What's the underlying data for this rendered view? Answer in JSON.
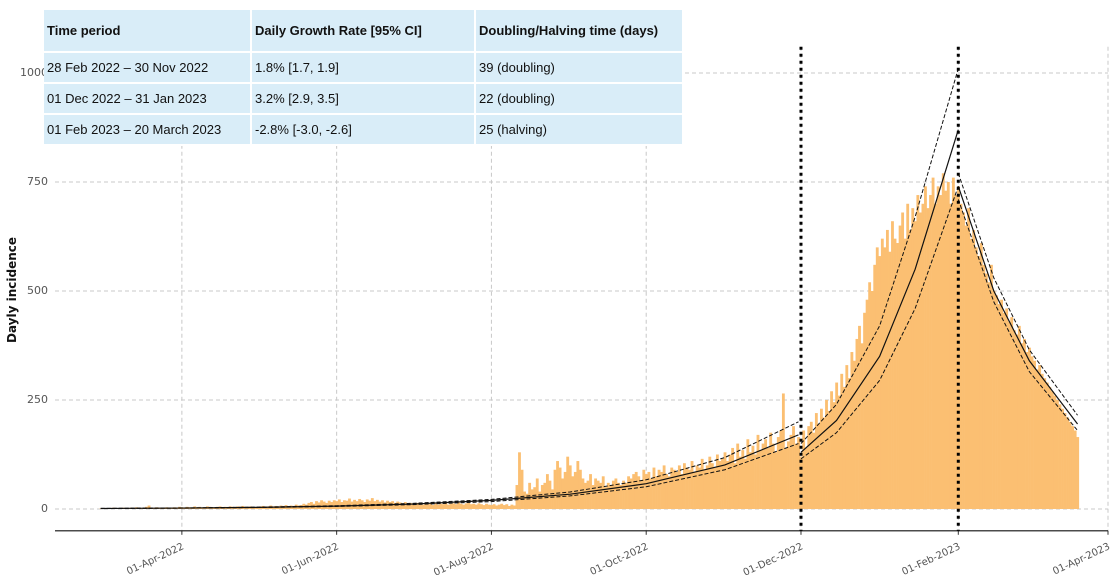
{
  "chart_data": {
    "type": "bar",
    "ylabel": "Dayly incidence",
    "color": "#fbbf72",
    "xlim": [
      "2022-02-10",
      "2023-04-01"
    ],
    "ylim": [
      -50,
      1060
    ],
    "yticks": [
      0,
      250,
      500,
      750,
      1000
    ],
    "xticks": [
      {
        "value": "2022-04-01",
        "label": "01-Apr-2022"
      },
      {
        "value": "2022-06-01",
        "label": "01-Jun-2022"
      },
      {
        "value": "2022-08-01",
        "label": "01-Aug-2022"
      },
      {
        "value": "2022-10-01",
        "label": "01-Oct-2022"
      },
      {
        "value": "2022-12-01",
        "label": "01-Dec-2022"
      },
      {
        "value": "2023-02-01",
        "label": "01-Feb-2023"
      },
      {
        "value": "2023-04-01",
        "label": "01-Apr-2023"
      }
    ],
    "grid": true,
    "vlines": [
      "2022-12-01",
      "2023-02-01"
    ],
    "x": [
      "2022-02-28",
      "2022-03-01",
      "2022-03-02",
      "2022-03-03",
      "2022-03-04",
      "2022-03-05",
      "2022-03-06",
      "2022-03-07",
      "2022-03-08",
      "2022-03-09",
      "2022-03-10",
      "2022-03-11",
      "2022-03-12",
      "2022-03-13",
      "2022-03-14",
      "2022-03-15",
      "2022-03-16",
      "2022-03-17",
      "2022-03-18",
      "2022-03-19",
      "2022-03-20",
      "2022-03-21",
      "2022-03-22",
      "2022-03-23",
      "2022-03-24",
      "2022-03-25",
      "2022-03-26",
      "2022-03-27",
      "2022-03-28",
      "2022-03-29",
      "2022-03-30",
      "2022-03-31",
      "2022-04-01",
      "2022-04-02",
      "2022-04-03",
      "2022-04-04",
      "2022-04-05",
      "2022-04-06",
      "2022-04-07",
      "2022-04-08",
      "2022-04-09",
      "2022-04-10",
      "2022-04-11",
      "2022-04-12",
      "2022-04-13",
      "2022-04-14",
      "2022-04-15",
      "2022-04-16",
      "2022-04-17",
      "2022-04-18",
      "2022-04-19",
      "2022-04-20",
      "2022-04-21",
      "2022-04-22",
      "2022-04-23",
      "2022-04-24",
      "2022-04-25",
      "2022-04-26",
      "2022-04-27",
      "2022-04-28",
      "2022-04-29",
      "2022-04-30",
      "2022-05-01",
      "2022-05-02",
      "2022-05-03",
      "2022-05-04",
      "2022-05-05",
      "2022-05-06",
      "2022-05-07",
      "2022-05-08",
      "2022-05-09",
      "2022-05-10",
      "2022-05-11",
      "2022-05-12",
      "2022-05-13",
      "2022-05-14",
      "2022-05-15",
      "2022-05-16",
      "2022-05-17",
      "2022-05-18",
      "2022-05-19",
      "2022-05-20",
      "2022-05-21",
      "2022-05-22",
      "2022-05-23",
      "2022-05-24",
      "2022-05-25",
      "2022-05-26",
      "2022-05-27",
      "2022-05-28",
      "2022-05-29",
      "2022-05-30",
      "2022-05-31",
      "2022-06-01",
      "2022-06-02",
      "2022-06-03",
      "2022-06-04",
      "2022-06-05",
      "2022-06-06",
      "2022-06-07",
      "2022-06-08",
      "2022-06-09",
      "2022-06-10",
      "2022-06-11",
      "2022-06-12",
      "2022-06-13",
      "2022-06-14",
      "2022-06-15",
      "2022-06-16",
      "2022-06-17",
      "2022-06-18",
      "2022-06-19",
      "2022-06-20",
      "2022-06-21",
      "2022-06-22",
      "2022-06-23",
      "2022-06-24",
      "2022-06-25",
      "2022-06-26",
      "2022-06-27",
      "2022-06-28",
      "2022-06-29",
      "2022-06-30",
      "2022-07-01",
      "2022-07-02",
      "2022-07-03",
      "2022-07-04",
      "2022-07-05",
      "2022-07-06",
      "2022-07-07",
      "2022-07-08",
      "2022-07-09",
      "2022-07-10",
      "2022-07-11",
      "2022-07-12",
      "2022-07-13",
      "2022-07-14",
      "2022-07-15",
      "2022-07-16",
      "2022-07-17",
      "2022-07-18",
      "2022-07-19",
      "2022-07-20",
      "2022-07-21",
      "2022-07-22",
      "2022-07-23",
      "2022-07-24",
      "2022-07-25",
      "2022-07-26",
      "2022-07-27",
      "2022-07-28",
      "2022-07-29",
      "2022-07-30",
      "2022-07-31",
      "2022-08-01",
      "2022-08-02",
      "2022-08-03",
      "2022-08-04",
      "2022-08-05",
      "2022-08-06",
      "2022-08-07",
      "2022-08-08",
      "2022-08-09",
      "2022-08-10",
      "2022-08-11",
      "2022-08-12",
      "2022-08-13",
      "2022-08-14",
      "2022-08-15",
      "2022-08-16",
      "2022-08-17",
      "2022-08-18",
      "2022-08-19",
      "2022-08-20",
      "2022-08-21",
      "2022-08-22",
      "2022-08-23",
      "2022-08-24",
      "2022-08-25",
      "2022-08-26",
      "2022-08-27",
      "2022-08-28",
      "2022-08-29",
      "2022-08-30",
      "2022-08-31",
      "2022-09-01",
      "2022-09-02",
      "2022-09-03",
      "2022-09-04",
      "2022-09-05",
      "2022-09-06",
      "2022-09-07",
      "2022-09-08",
      "2022-09-09",
      "2022-09-10",
      "2022-09-11",
      "2022-09-12",
      "2022-09-13",
      "2022-09-14",
      "2022-09-15",
      "2022-09-16",
      "2022-09-17",
      "2022-09-18",
      "2022-09-19",
      "2022-09-20",
      "2022-09-21",
      "2022-09-22",
      "2022-09-23",
      "2022-09-24",
      "2022-09-25",
      "2022-09-26",
      "2022-09-27",
      "2022-09-28",
      "2022-09-29",
      "2022-09-30",
      "2022-10-01",
      "2022-10-02",
      "2022-10-03",
      "2022-10-04",
      "2022-10-05",
      "2022-10-06",
      "2022-10-07",
      "2022-10-08",
      "2022-10-09",
      "2022-10-10",
      "2022-10-11",
      "2022-10-12",
      "2022-10-13",
      "2022-10-14",
      "2022-10-15",
      "2022-10-16",
      "2022-10-17",
      "2022-10-18",
      "2022-10-19",
      "2022-10-20",
      "2022-10-21",
      "2022-10-22",
      "2022-10-23",
      "2022-10-24",
      "2022-10-25",
      "2022-10-26",
      "2022-10-27",
      "2022-10-28",
      "2022-10-29",
      "2022-10-30",
      "2022-10-31",
      "2022-11-01",
      "2022-11-02",
      "2022-11-03",
      "2022-11-04",
      "2022-11-05",
      "2022-11-06",
      "2022-11-07",
      "2022-11-08",
      "2022-11-09",
      "2022-11-10",
      "2022-11-11",
      "2022-11-12",
      "2022-11-13",
      "2022-11-14",
      "2022-11-15",
      "2022-11-16",
      "2022-11-17",
      "2022-11-18",
      "2022-11-19",
      "2022-11-20",
      "2022-11-21",
      "2022-11-22",
      "2022-11-23",
      "2022-11-24",
      "2022-11-25",
      "2022-11-26",
      "2022-11-27",
      "2022-11-28",
      "2022-11-29",
      "2022-11-30",
      "2022-12-01",
      "2022-12-02",
      "2022-12-03",
      "2022-12-04",
      "2022-12-05",
      "2022-12-06",
      "2022-12-07",
      "2022-12-08",
      "2022-12-09",
      "2022-12-10",
      "2022-12-11",
      "2022-12-12",
      "2022-12-13",
      "2022-12-14",
      "2022-12-15",
      "2022-12-16",
      "2022-12-17",
      "2022-12-18",
      "2022-12-19",
      "2022-12-20",
      "2022-12-21",
      "2022-12-22",
      "2022-12-23",
      "2022-12-24",
      "2022-12-25",
      "2022-12-26",
      "2022-12-27",
      "2022-12-28",
      "2022-12-29",
      "2022-12-30",
      "2022-12-31",
      "2023-01-01",
      "2023-01-02",
      "2023-01-03",
      "2023-01-04",
      "2023-01-05",
      "2023-01-06",
      "2023-01-07",
      "2023-01-08",
      "2023-01-09",
      "2023-01-10",
      "2023-01-11",
      "2023-01-12",
      "2023-01-13",
      "2023-01-14",
      "2023-01-15",
      "2023-01-16",
      "2023-01-17",
      "2023-01-18",
      "2023-01-19",
      "2023-01-20",
      "2023-01-21",
      "2023-01-22",
      "2023-01-23",
      "2023-01-24",
      "2023-01-25",
      "2023-01-26",
      "2023-01-27",
      "2023-01-28",
      "2023-01-29",
      "2023-01-30",
      "2023-01-31",
      "2023-02-01",
      "2023-02-02",
      "2023-02-03",
      "2023-02-04",
      "2023-02-05",
      "2023-02-06",
      "2023-02-07",
      "2023-02-08",
      "2023-02-09",
      "2023-02-10",
      "2023-02-11",
      "2023-02-12",
      "2023-02-13",
      "2023-02-14",
      "2023-02-15",
      "2023-02-16",
      "2023-02-17",
      "2023-02-18",
      "2023-02-19",
      "2023-02-20",
      "2023-02-21",
      "2023-02-22",
      "2023-02-23",
      "2023-02-24",
      "2023-02-25",
      "2023-02-26",
      "2023-02-27",
      "2023-02-28",
      "2023-03-01",
      "2023-03-02",
      "2023-03-03",
      "2023-03-04",
      "2023-03-05",
      "2023-03-06",
      "2023-03-07",
      "2023-03-08",
      "2023-03-09",
      "2023-03-10",
      "2023-03-11",
      "2023-03-12",
      "2023-03-13",
      "2023-03-14",
      "2023-03-15",
      "2023-03-16",
      "2023-03-17",
      "2023-03-18",
      "2023-03-19",
      "2023-03-20"
    ],
    "values": [
      1,
      1,
      2,
      1,
      2,
      3,
      2,
      1,
      2,
      3,
      2,
      1,
      3,
      2,
      4,
      3,
      2,
      3,
      5,
      8,
      3,
      2,
      4,
      3,
      2,
      3,
      4,
      2,
      3,
      4,
      3,
      5,
      4,
      3,
      5,
      4,
      3,
      6,
      4,
      5,
      3,
      4,
      6,
      5,
      4,
      3,
      5,
      6,
      4,
      5,
      3,
      6,
      5,
      4,
      6,
      5,
      7,
      4,
      5,
      6,
      5,
      4,
      5,
      6,
      7,
      5,
      6,
      8,
      6,
      7,
      5,
      8,
      7,
      9,
      6,
      8,
      7,
      10,
      8,
      9,
      12,
      10,
      14,
      16,
      12,
      18,
      15,
      20,
      17,
      14,
      19,
      16,
      20,
      18,
      22,
      16,
      20,
      19,
      24,
      17,
      21,
      18,
      23,
      20,
      16,
      22,
      19,
      25,
      18,
      21,
      17,
      20,
      15,
      19,
      16,
      18,
      14,
      17,
      15,
      13,
      16,
      12,
      14,
      13,
      11,
      14,
      12,
      10,
      13,
      11,
      12,
      9,
      13,
      10,
      12,
      11,
      14,
      10,
      12,
      13,
      11,
      15,
      12,
      10,
      13,
      14,
      11,
      12,
      10,
      13,
      11,
      9,
      12,
      10,
      9,
      11,
      8,
      10,
      12,
      9,
      11,
      7,
      10,
      8,
      55,
      130,
      90,
      40,
      35,
      60,
      45,
      50,
      70,
      40,
      55,
      60,
      80,
      65,
      45,
      90,
      110,
      95,
      70,
      85,
      120,
      100,
      75,
      85,
      110,
      90,
      70,
      60,
      65,
      80,
      55,
      70,
      65,
      60,
      75,
      50,
      60,
      55,
      65,
      70,
      60,
      55,
      65,
      60,
      75,
      70,
      80,
      85,
      75,
      65,
      90,
      80,
      85,
      70,
      95,
      75,
      90,
      85,
      100,
      80,
      75,
      95,
      90,
      85,
      100,
      80,
      105,
      95,
      90,
      110,
      85,
      100,
      95,
      115,
      90,
      100,
      120,
      105,
      95,
      125,
      110,
      115,
      130,
      110,
      125,
      140,
      105,
      150,
      120,
      135,
      115,
      160,
      130,
      145,
      125,
      170,
      135,
      150,
      160,
      140,
      175,
      150,
      130,
      165,
      180,
      265,
      140,
      155,
      170,
      190,
      150,
      165,
      120,
      180,
      140,
      190,
      200,
      175,
      220,
      195,
      230,
      210,
      250,
      225,
      270,
      245,
      290,
      260,
      310,
      280,
      330,
      300,
      360,
      340,
      390,
      420,
      380,
      450,
      480,
      520,
      500,
      560,
      600,
      580,
      620,
      600,
      640,
      590,
      660,
      620,
      610,
      650,
      680,
      620,
      700,
      640,
      690,
      660,
      720,
      680,
      700,
      740,
      690,
      720,
      760,
      700,
      740,
      720,
      770,
      730,
      750,
      700,
      760,
      720,
      740,
      700,
      680,
      650,
      690,
      620,
      640,
      600,
      580,
      610,
      560,
      540,
      520,
      560,
      500,
      490,
      470,
      480,
      450,
      460,
      430,
      440,
      410,
      400,
      420,
      380,
      390,
      360,
      370,
      350,
      340,
      320,
      330,
      310,
      300,
      290,
      280,
      270,
      260,
      250,
      240,
      230,
      220,
      210,
      200,
      190,
      180,
      165
    ],
    "lines": [
      {
        "dashed": false,
        "x": [
          "2022-02-28",
          "2022-04-01",
          "2022-05-01",
          "2022-06-01",
          "2022-07-01",
          "2022-08-01",
          "2022-09-01",
          "2022-10-01",
          "2022-11-01",
          "2022-11-30"
        ],
        "values": [
          1.2,
          2.2,
          3.8,
          6.6,
          11.3,
          19.7,
          34,
          58,
          101,
          170
        ]
      },
      {
        "dashed": true,
        "x": [
          "2022-02-28",
          "2022-04-01",
          "2022-05-01",
          "2022-06-01",
          "2022-07-01",
          "2022-08-01",
          "2022-09-01",
          "2022-10-01",
          "2022-11-01",
          "2022-11-30"
        ],
        "values": [
          1.4,
          2.5,
          4.3,
          7.5,
          13,
          22,
          39,
          67,
          118,
          200
        ]
      },
      {
        "dashed": true,
        "x": [
          "2022-02-28",
          "2022-04-01",
          "2022-05-01",
          "2022-06-01",
          "2022-07-01",
          "2022-08-01",
          "2022-09-01",
          "2022-10-01",
          "2022-11-01",
          "2022-11-30"
        ],
        "values": [
          1.0,
          1.9,
          3.3,
          5.8,
          10,
          17,
          30,
          51,
          90,
          150
        ]
      },
      {
        "dashed": false,
        "x": [
          "2022-12-01",
          "2022-12-15",
          "2023-01-01",
          "2023-01-15",
          "2023-02-01"
        ],
        "values": [
          130,
          203,
          350,
          550,
          870
        ]
      },
      {
        "dashed": true,
        "x": [
          "2022-12-01",
          "2022-12-15",
          "2023-01-01",
          "2023-01-15",
          "2023-02-01"
        ],
        "values": [
          150,
          240,
          420,
          670,
          1010
        ]
      },
      {
        "dashed": true,
        "x": [
          "2022-12-01",
          "2022-12-15",
          "2023-01-01",
          "2023-01-15",
          "2023-02-01"
        ],
        "values": [
          115,
          175,
          295,
          460,
          740
        ]
      },
      {
        "dashed": false,
        "x": [
          "2023-02-01",
          "2023-02-15",
          "2023-03-01",
          "2023-03-20"
        ],
        "values": [
          740,
          500,
          340,
          195
        ]
      },
      {
        "dashed": true,
        "x": [
          "2023-02-01",
          "2023-02-15",
          "2023-03-01",
          "2023-03-20"
        ],
        "values": [
          770,
          530,
          365,
          215
        ]
      },
      {
        "dashed": true,
        "x": [
          "2023-02-01",
          "2023-02-15",
          "2023-03-01",
          "2023-03-20"
        ],
        "values": [
          710,
          475,
          315,
          180
        ]
      }
    ]
  },
  "table": {
    "header": [
      "Time period",
      "Daily Growth Rate [95% CI]",
      "Doubling/Halving time (days)"
    ],
    "rows": [
      [
        "28 Feb 2022 – 30 Nov 2022",
        "1.8% [1.7, 1.9]",
        "39 (doubling)"
      ],
      [
        "01 Dec 2022 – 31 Jan 2023",
        "3.2% [2.9, 3.5]",
        "22 (doubling)"
      ],
      [
        "01 Feb 2023 – 20 March 2023",
        "-2.8% [-3.0, -2.6]",
        "25 (halving)"
      ]
    ]
  }
}
